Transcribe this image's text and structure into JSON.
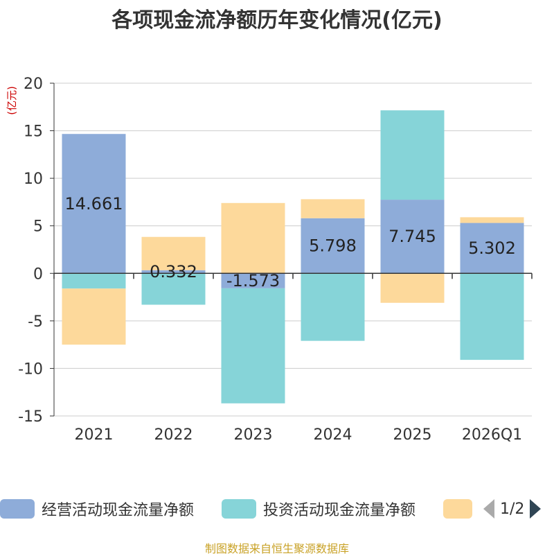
{
  "source_note": "制图数据来自恒生聚源数据库",
  "pager": {
    "text": "1/2"
  },
  "chart_data": {
    "type": "bar",
    "stacked": true,
    "title": "各项现金流净额历年变化情况(亿元)",
    "ylabel": "(亿元)",
    "xlabel": "",
    "ylim": [
      -15,
      20
    ],
    "yticks": [
      20,
      15,
      10,
      5,
      0,
      -5,
      -10,
      -15
    ],
    "grid": true,
    "legend_position": "bottom",
    "categories": [
      "2021",
      "2022",
      "2023",
      "2024",
      "2025",
      "2026Q1"
    ],
    "series": [
      {
        "name": "经营活动现金流量净额",
        "color": "#8eacd9",
        "values": [
          14.661,
          0.332,
          -1.573,
          5.798,
          7.745,
          5.302
        ],
        "labels": [
          "14.661",
          "0.332",
          "-1.573",
          "5.798",
          "7.745",
          "5.302"
        ]
      },
      {
        "name": "投资活动现金流量净额",
        "color": "#86d4d8",
        "values": [
          -1.6,
          -3.3,
          -12.1,
          -7.1,
          9.4,
          -9.1
        ]
      },
      {
        "name": "",
        "color": "#fdd99b",
        "values": [
          -5.9,
          3.5,
          7.4,
          2.0,
          -3.1,
          0.6
        ]
      }
    ]
  }
}
